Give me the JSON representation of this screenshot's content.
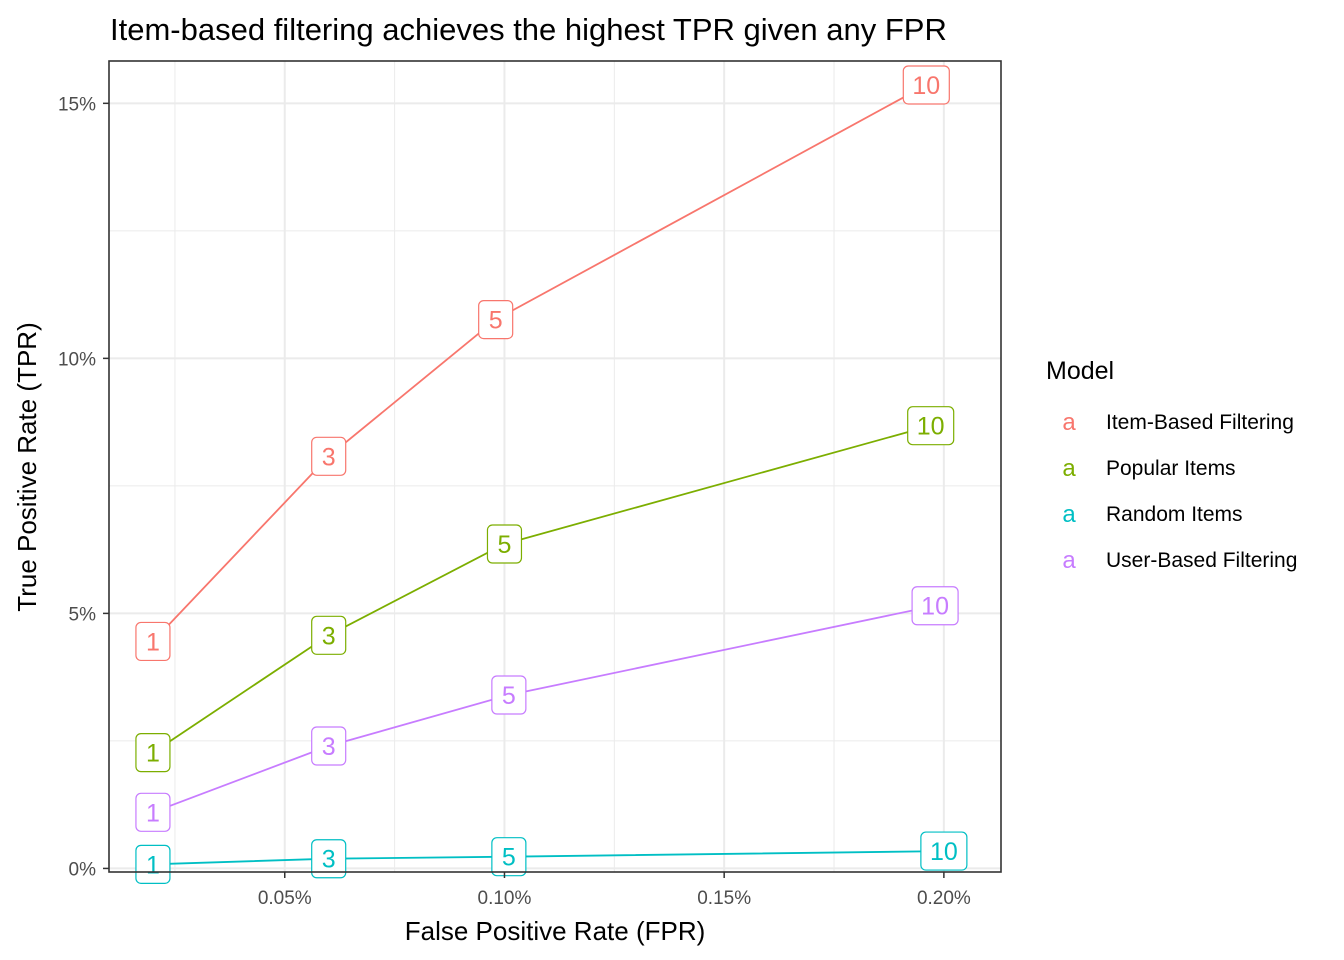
{
  "chart_data": {
    "type": "line",
    "title": "Item-based filtering achieves the highest TPR given any FPR",
    "xlabel": "False Positive Rate (FPR)",
    "ylabel": "True Positive Rate (TPR)",
    "xlim": [
      0.0001,
      0.00213
    ],
    "ylim": [
      -0.0007,
      0.1583
    ],
    "x_ticks": [
      {
        "value": 0.0005,
        "label": "0.05%"
      },
      {
        "value": 0.001,
        "label": "0.10%"
      },
      {
        "value": 0.0015,
        "label": "0.15%"
      },
      {
        "value": 0.002,
        "label": "0.20%"
      }
    ],
    "y_ticks": [
      {
        "value": 0.0,
        "label": "0%"
      },
      {
        "value": 0.05,
        "label": "5%"
      },
      {
        "value": 0.1,
        "label": "10%"
      },
      {
        "value": 0.15,
        "label": "15%"
      }
    ],
    "grid": true,
    "legend": {
      "title": "Model",
      "position": "right",
      "key_glyph": "a"
    },
    "series": [
      {
        "name": "Item-Based Filtering",
        "color": "#F8766D",
        "points": [
          {
            "x": 0.0002,
            "y": 0.0445,
            "label": "1"
          },
          {
            "x": 0.0006,
            "y": 0.0808,
            "label": "3"
          },
          {
            "x": 0.00098,
            "y": 0.1076,
            "label": "5"
          },
          {
            "x": 0.00196,
            "y": 0.1536,
            "label": "10"
          }
        ]
      },
      {
        "name": "Popular Items",
        "color": "#7CAE00",
        "points": [
          {
            "x": 0.0002,
            "y": 0.0227,
            "label": "1"
          },
          {
            "x": 0.0006,
            "y": 0.0457,
            "label": "3"
          },
          {
            "x": 0.001,
            "y": 0.0636,
            "label": "5"
          },
          {
            "x": 0.00197,
            "y": 0.0868,
            "label": "10"
          }
        ]
      },
      {
        "name": "Random Items",
        "color": "#00BFC4",
        "points": [
          {
            "x": 0.0002,
            "y": 0.0008,
            "label": "1"
          },
          {
            "x": 0.0006,
            "y": 0.0019,
            "label": "3"
          },
          {
            "x": 0.00101,
            "y": 0.0023,
            "label": "5"
          },
          {
            "x": 0.002,
            "y": 0.0034,
            "label": "10"
          }
        ]
      },
      {
        "name": "User-Based Filtering",
        "color": "#C77CFF",
        "points": [
          {
            "x": 0.0002,
            "y": 0.011,
            "label": "1"
          },
          {
            "x": 0.0006,
            "y": 0.024,
            "label": "3"
          },
          {
            "x": 0.00101,
            "y": 0.034,
            "label": "5"
          },
          {
            "x": 0.00198,
            "y": 0.0515,
            "label": "10"
          }
        ]
      }
    ]
  }
}
